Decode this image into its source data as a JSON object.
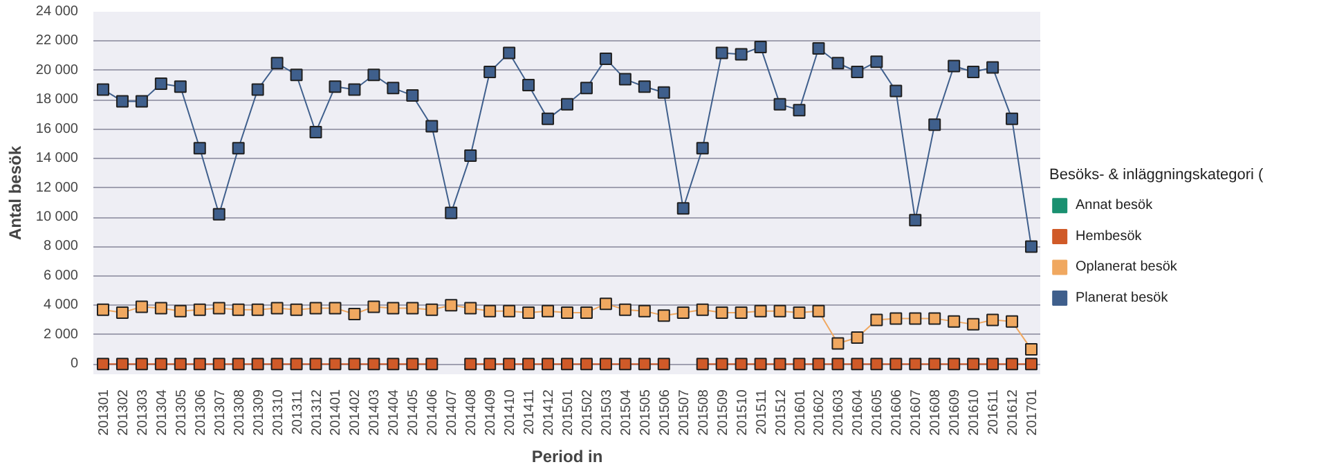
{
  "chart_data": {
    "type": "line",
    "xlabel": "Period in",
    "ylabel": "Antal besök",
    "legend_title": "Besöks- & inläggningskategori (",
    "categories": [
      "201301",
      "201302",
      "201303",
      "201304",
      "201305",
      "201306",
      "201307",
      "201308",
      "201309",
      "201310",
      "201311",
      "201312",
      "201401",
      "201402",
      "201403",
      "201404",
      "201405",
      "201406",
      "201407",
      "201408",
      "201409",
      "201410",
      "201411",
      "201412",
      "201501",
      "201502",
      "201503",
      "201504",
      "201505",
      "201506",
      "201507",
      "201508",
      "201509",
      "201510",
      "201511",
      "201512",
      "201601",
      "201602",
      "201603",
      "201604",
      "201605",
      "201606",
      "201607",
      "201608",
      "201609",
      "201610",
      "201611",
      "201612",
      "201701"
    ],
    "ylim": [
      -700,
      24000
    ],
    "yticks": [
      {
        "value": 0,
        "label": "0"
      },
      {
        "value": 2000,
        "label": "2 000"
      },
      {
        "value": 4000,
        "label": "4 000"
      },
      {
        "value": 6000,
        "label": "6 000"
      },
      {
        "value": 8000,
        "label": "8 000"
      },
      {
        "value": 10000,
        "label": "10 000"
      },
      {
        "value": 12000,
        "label": "12 000"
      },
      {
        "value": 14000,
        "label": "14 000"
      },
      {
        "value": 16000,
        "label": "16 000"
      },
      {
        "value": 18000,
        "label": "18 000"
      },
      {
        "value": 20000,
        "label": "20 000"
      },
      {
        "value": 22000,
        "label": "22 000"
      },
      {
        "value": 24000,
        "label": "24 000"
      }
    ],
    "grid": "y",
    "legend": "right",
    "marker": "square",
    "line_style": "solid",
    "series": [
      {
        "name": "Annat besök",
        "color": "#1a9070",
        "values": [
          null,
          null,
          null,
          null,
          null,
          null,
          null,
          null,
          null,
          null,
          null,
          null,
          null,
          null,
          null,
          null,
          null,
          null,
          null,
          null,
          null,
          null,
          null,
          null,
          null,
          null,
          null,
          null,
          null,
          null,
          null,
          null,
          null,
          null,
          null,
          null,
          null,
          null,
          null,
          null,
          null,
          null,
          null,
          null,
          null,
          null,
          null,
          null,
          null
        ]
      },
      {
        "name": "Hembesök",
        "color": "#d05a28",
        "values": [
          0,
          0,
          0,
          0,
          0,
          0,
          0,
          0,
          0,
          0,
          0,
          0,
          0,
          0,
          0,
          0,
          0,
          0,
          null,
          0,
          0,
          0,
          0,
          0,
          0,
          0,
          0,
          0,
          0,
          0,
          null,
          0,
          0,
          0,
          0,
          0,
          0,
          0,
          0,
          0,
          0,
          0,
          0,
          0,
          0,
          0,
          0,
          0,
          0
        ]
      },
      {
        "name": "Oplanerat besök",
        "color": "#f0a860",
        "values": [
          3700,
          3500,
          3900,
          3800,
          3600,
          3700,
          3800,
          3700,
          3700,
          3800,
          3700,
          3800,
          3800,
          3400,
          3900,
          3800,
          3800,
          3700,
          4000,
          3800,
          3600,
          3600,
          3500,
          3600,
          3500,
          3500,
          4100,
          3700,
          3600,
          3300,
          3500,
          3700,
          3500,
          3500,
          3600,
          3600,
          3500,
          3600,
          1400,
          1800,
          3000,
          3100,
          3100,
          3100,
          2900,
          2700,
          3000,
          2900,
          1000
        ]
      },
      {
        "name": "Planerat besök",
        "color": "#3f5f8c",
        "values": [
          18700,
          17900,
          17900,
          19100,
          18900,
          14700,
          10200,
          14700,
          18700,
          20500,
          19700,
          15800,
          18900,
          18700,
          19700,
          18800,
          18300,
          16200,
          10300,
          14200,
          19900,
          21200,
          19000,
          16700,
          17700,
          18800,
          20800,
          19400,
          18900,
          18500,
          10600,
          14700,
          21200,
          21100,
          21600,
          17700,
          17300,
          21500,
          20500,
          19900,
          20600,
          18600,
          9800,
          16300,
          20300,
          19900,
          20200,
          16700,
          8000
        ]
      }
    ]
  }
}
